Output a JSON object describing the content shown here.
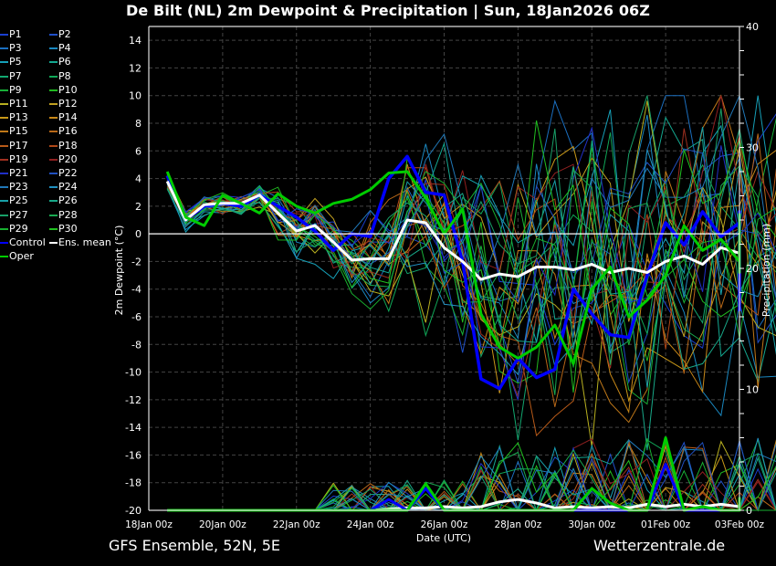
{
  "title": "De Bilt  (NL)  2m Dewpoint & Precipitation | Sun, 18Jan2026 06Z",
  "footer": {
    "left": "GFS Ensemble, 52N, 5E",
    "right": "Wetterzentrale.de"
  },
  "chart_data": {
    "type": "line",
    "title": "De Bilt  (NL)  2m Dewpoint & Precipitation | Sun, 18Jan2026 06Z",
    "xlabel": "Date (UTC)",
    "ylabel": "2m Dewpoint (°C)",
    "y2label": "Precipitation (mm)",
    "ylim": [
      -20,
      15
    ],
    "y2lim": [
      0,
      40
    ],
    "yticks": [
      "14",
      "12",
      "10",
      "8",
      "6",
      "4",
      "2",
      "0",
      "-2",
      "-4",
      "-6",
      "-8",
      "-10",
      "-12",
      "-14",
      "-16",
      "-18",
      "-20"
    ],
    "y2ticks": [
      "40",
      "30",
      "20",
      "10",
      "0"
    ],
    "xticks": [
      "18Jan 00z",
      "20Jan 00z",
      "22Jan 00z",
      "24Jan 00z",
      "26Jan 00z",
      "28Jan 00z",
      "30Jan 00z",
      "01Feb 00z",
      "03Feb 00z"
    ],
    "x_days_range": [
      0,
      16
    ],
    "x_step_hours": 12,
    "x_start_day": 0.5,
    "grid": true,
    "legend_position": "left",
    "legend": [
      {
        "name": "P1",
        "color": "#1a3fd0"
      },
      {
        "name": "P2",
        "color": "#1f4fc8"
      },
      {
        "name": "P3",
        "color": "#1b6fc0"
      },
      {
        "name": "P4",
        "color": "#1a88c0"
      },
      {
        "name": "P5",
        "color": "#16a0b8"
      },
      {
        "name": "P6",
        "color": "#14a890"
      },
      {
        "name": "P7",
        "color": "#12a870"
      },
      {
        "name": "P8",
        "color": "#10a858"
      },
      {
        "name": "P9",
        "color": "#18b038"
      },
      {
        "name": "P10",
        "color": "#20b820"
      },
      {
        "name": "P11",
        "color": "#b8b020"
      },
      {
        "name": "P12",
        "color": "#c0a020"
      },
      {
        "name": "P13",
        "color": "#c89818"
      },
      {
        "name": "P14",
        "color": "#c88818"
      },
      {
        "name": "P15",
        "color": "#c07818"
      },
      {
        "name": "P16",
        "color": "#b86818"
      },
      {
        "name": "P17",
        "color": "#b85a18"
      },
      {
        "name": "P18",
        "color": "#b04818"
      },
      {
        "name": "P19",
        "color": "#a03020"
      },
      {
        "name": "P20",
        "color": "#902020"
      },
      {
        "name": "P21",
        "color": "#2030c8"
      },
      {
        "name": "P22",
        "color": "#2050c0"
      },
      {
        "name": "P23",
        "color": "#2078b8"
      },
      {
        "name": "P24",
        "color": "#2090c0"
      },
      {
        "name": "P25",
        "color": "#18a0a8"
      },
      {
        "name": "P26",
        "color": "#18a888"
      },
      {
        "name": "P27",
        "color": "#18a068"
      },
      {
        "name": "P28",
        "color": "#18a850"
      },
      {
        "name": "P29",
        "color": "#18b030"
      },
      {
        "name": "P30",
        "color": "#20c020"
      },
      {
        "name": "Control",
        "color": "#0000ff"
      },
      {
        "name": "Ens. mean",
        "color": "#ffffff"
      },
      {
        "name": "Oper",
        "color": "#00cc00"
      }
    ],
    "series": [
      {
        "name": "Control",
        "color": "#0000ff",
        "width": 3.5,
        "values": [
          4.2,
          1.0,
          2.0,
          2.2,
          2.0,
          2.8,
          2.0,
          1.2,
          0.2,
          -1.2,
          0.0,
          -0.2,
          4.0,
          5.6,
          3.0,
          2.8,
          -2.0,
          -10.5,
          -11.2,
          -9.0,
          -10.4,
          -9.8,
          -4.0,
          -5.8,
          -7.3,
          -7.5,
          -3.0,
          0.8,
          -0.8,
          1.6,
          -0.2,
          0.8,
          -1.5,
          -1.0,
          1.6,
          0.2,
          -3.0,
          -3.8,
          -4.2,
          -5.6
        ]
      },
      {
        "name": "Ens. mean",
        "color": "#ffffff",
        "width": 3,
        "values": [
          3.8,
          1.0,
          2.1,
          2.2,
          2.2,
          2.8,
          1.5,
          0.2,
          0.6,
          -0.6,
          -1.9,
          -1.8,
          -1.8,
          1.0,
          0.8,
          -1.0,
          -2.0,
          -3.3,
          -2.9,
          -3.1,
          -2.4,
          -2.4,
          -2.6,
          -2.2,
          -2.8,
          -2.5,
          -2.8,
          -2.0,
          -1.6,
          -2.2,
          -1.0,
          -1.4,
          -2.2,
          -2.0,
          -2.0,
          -1.2,
          -1.4,
          -1.8,
          -1.8,
          -1.6
        ]
      },
      {
        "name": "Oper",
        "color": "#00cc00",
        "width": 3,
        "values": [
          4.5,
          1.2,
          0.6,
          2.8,
          2.2,
          1.5,
          2.9,
          2.0,
          1.5,
          2.2,
          2.5,
          3.2,
          4.4,
          4.5,
          2.6,
          0.0,
          1.8,
          -5.8,
          -8.2,
          -9.0,
          -8.2,
          -6.6,
          -9.4,
          -4.0,
          -2.4,
          -6.0,
          -4.8,
          -3.0,
          0.6,
          -1.2,
          -0.4,
          -2.0,
          -0.3,
          -0.8,
          1.4,
          -2.8,
          1.4,
          -2.0,
          -0.6,
          -0.8,
          -1.5
        ]
      },
      {
        "name": "Ens. mean precip (mm)",
        "axis": "y2",
        "color": "#ffffff",
        "width": 3,
        "values": [
          0,
          0,
          0,
          0,
          0,
          0,
          0,
          0,
          0,
          0,
          0,
          0,
          0.1,
          0.2,
          0.2,
          0.3,
          0.2,
          0.3,
          0.7,
          0.9,
          0.6,
          0.2,
          0.3,
          0.2,
          0.3,
          0.2,
          0.5,
          0.3,
          0.5,
          0.3,
          0.5,
          0.3,
          0.7,
          0.9,
          0.4,
          0.4,
          0.6,
          0.7,
          0.4,
          0.5
        ]
      },
      {
        "name": "Oper precip (mm)",
        "axis": "y2",
        "color": "#00cc00",
        "width": 3,
        "values": [
          0,
          0,
          0,
          0,
          0,
          0,
          0,
          0,
          0,
          0,
          0,
          0,
          0,
          0,
          2.2,
          0,
          0,
          0,
          0,
          0,
          0,
          0,
          0,
          1.8,
          0.6,
          0,
          0,
          6.0,
          0,
          0.3,
          0,
          0,
          0.6,
          0,
          0,
          0,
          0,
          0,
          1.0,
          0,
          0
        ]
      },
      {
        "name": "Control precip (mm)",
        "axis": "y2",
        "color": "#0000ff",
        "width": 3,
        "values": [
          0,
          0,
          0,
          0,
          0,
          0,
          0,
          0,
          0,
          0,
          0,
          0,
          0.9,
          0,
          1.8,
          0,
          0,
          0,
          0,
          0,
          0,
          0,
          0,
          0,
          0,
          0,
          0,
          3.8,
          0,
          0,
          0,
          0,
          0,
          0,
          0,
          0,
          0,
          0,
          0,
          0,
          0
        ]
      }
    ]
  }
}
